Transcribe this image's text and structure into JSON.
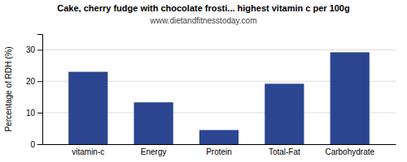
{
  "chart_data": {
    "type": "bar",
    "title": "Cake, cherry fudge with chocolate frosti... highest vitamin c per 100g",
    "subtitle": "www.dietandfitnesstoday.com",
    "categories": [
      "vitamin-c",
      "Energy",
      "Protein",
      "Total-Fat",
      "Carbohydrate"
    ],
    "values": [
      23.0,
      13.3,
      4.5,
      19.2,
      29.2
    ],
    "color": "#2b4590",
    "ylabel": "Percentage of RDH (%)",
    "ylim": [
      0,
      35
    ],
    "yticks": [
      0,
      10,
      20,
      30
    ],
    "grid": true
  }
}
